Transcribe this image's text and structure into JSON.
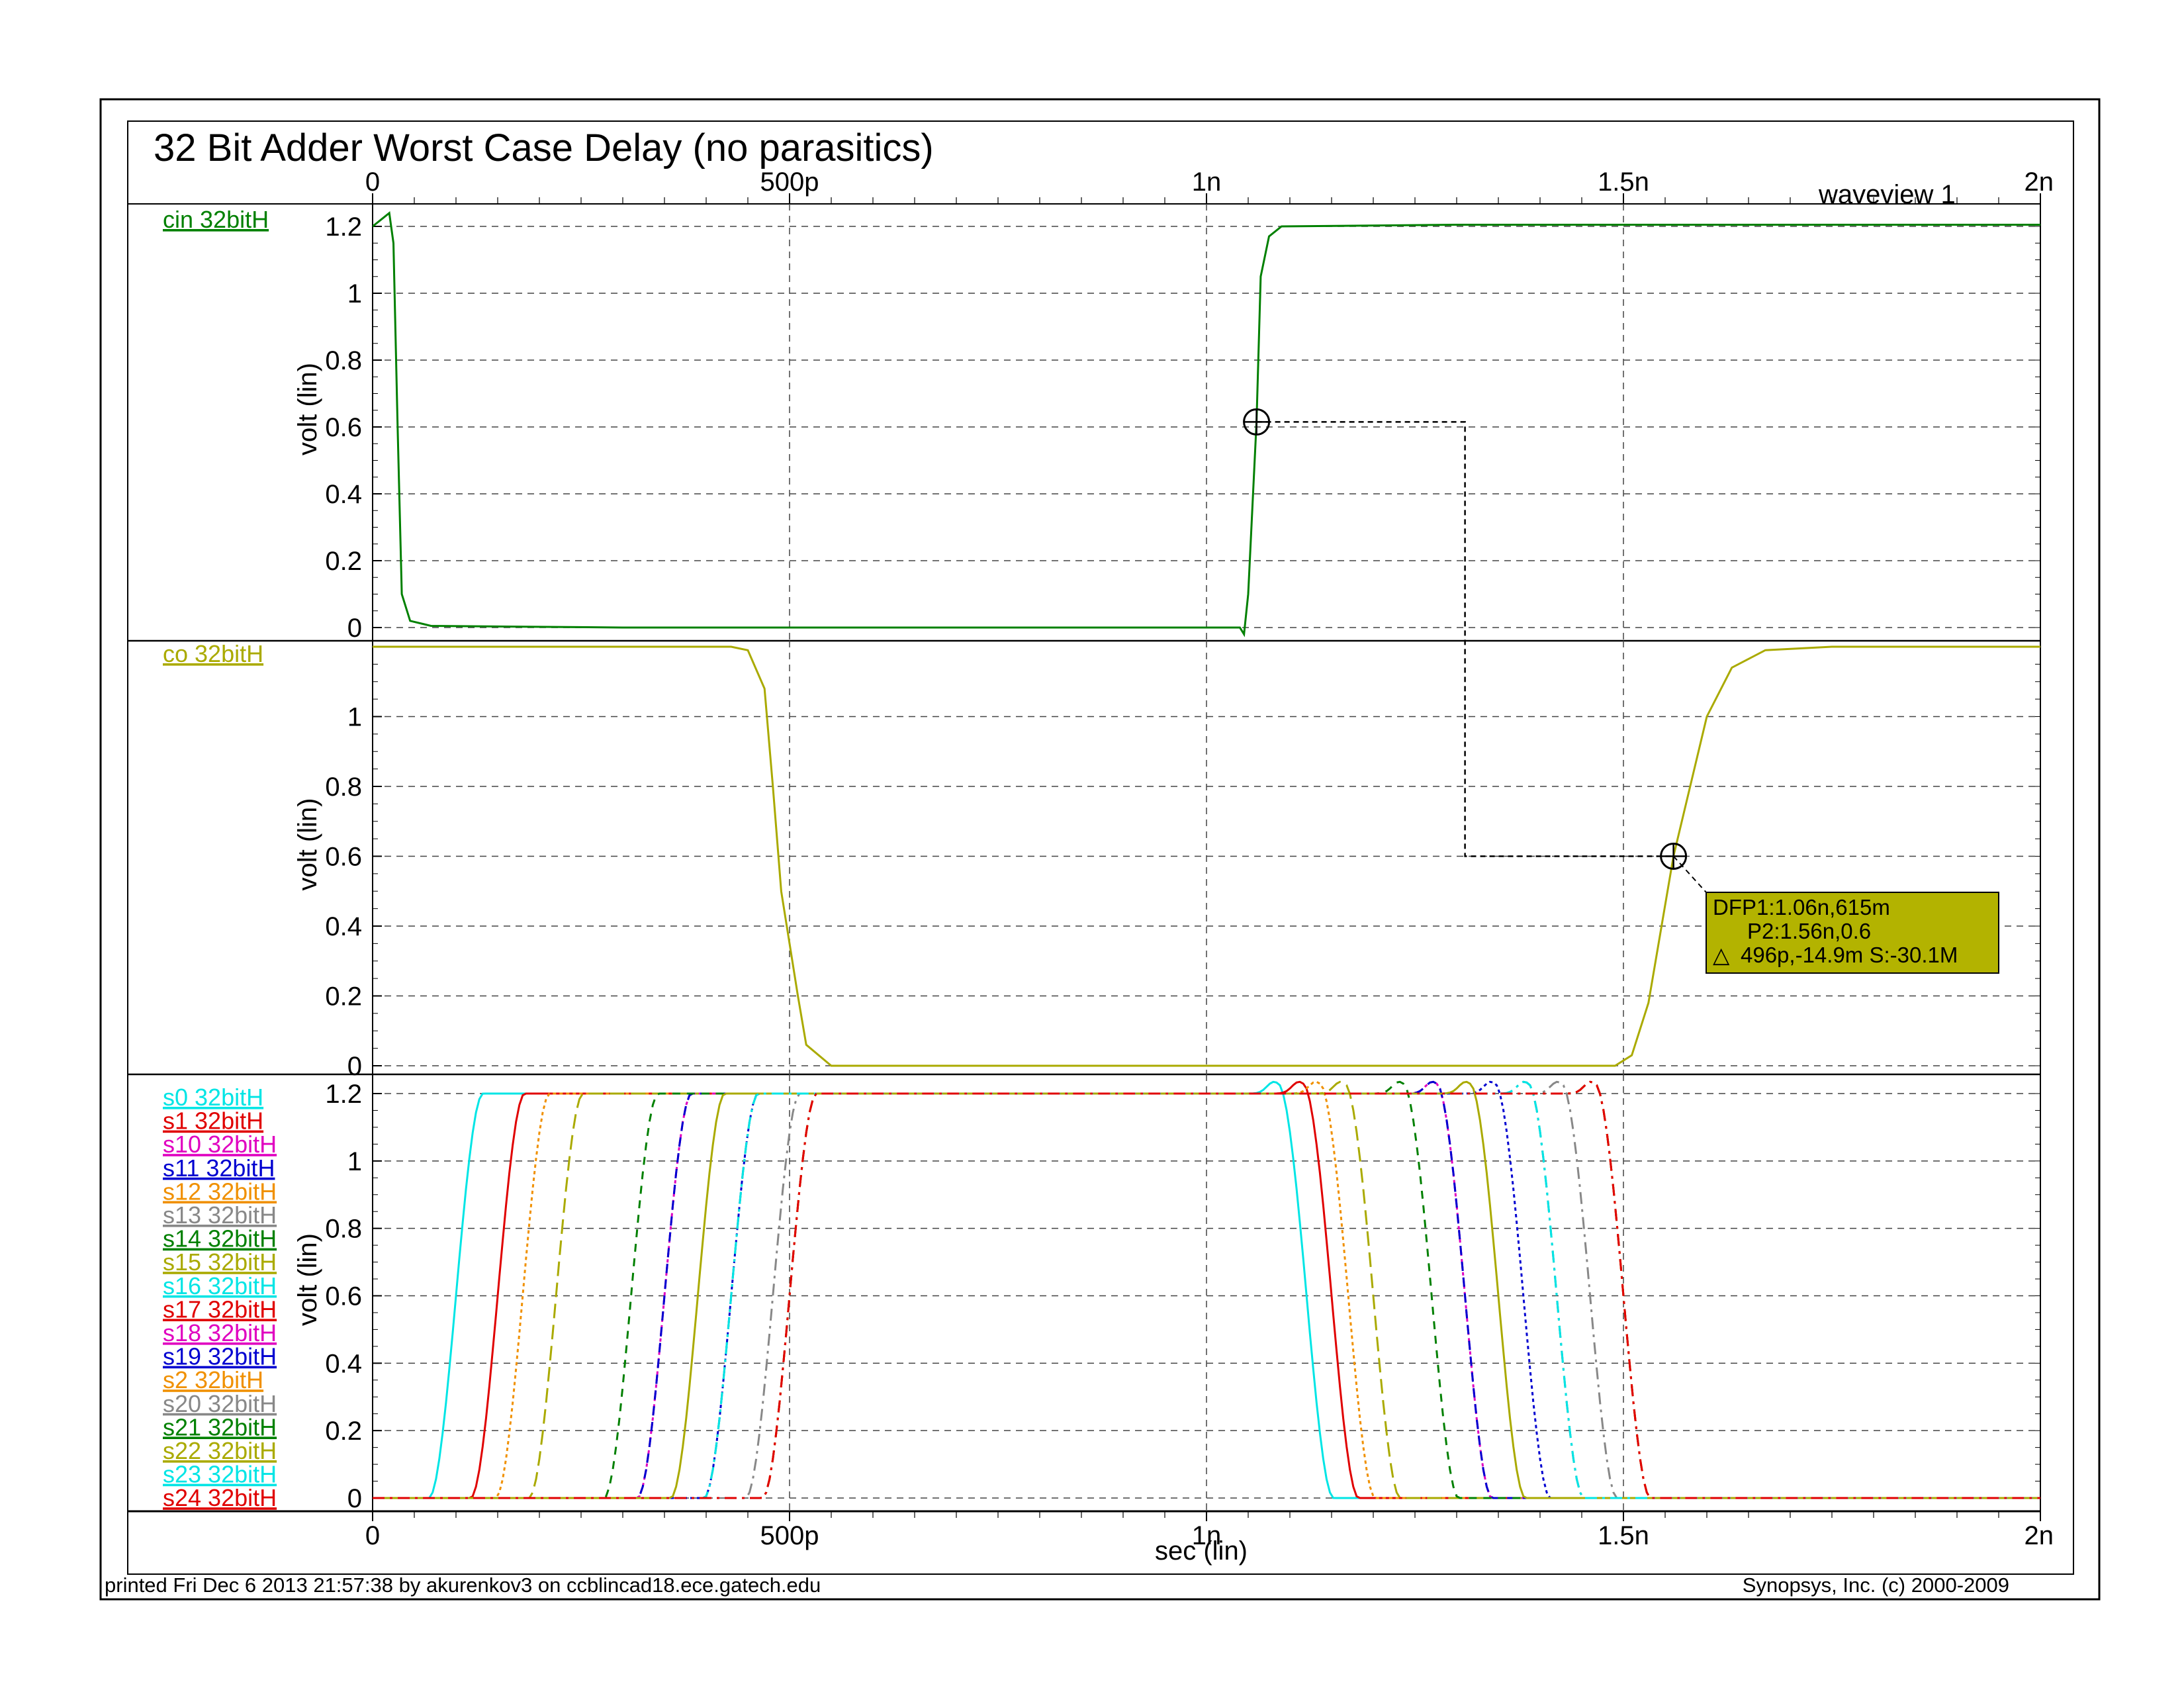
{
  "page": {
    "title": "32 Bit Adder Worst Case Delay (no parasitics)",
    "window_label": "waveview 1",
    "footer_left": "printed Fri Dec  6 2013 21:57:38 by akurenkov3 on ccblincad18.ece.gatech.edu",
    "footer_right": "Synopsys, Inc. (c) 2000-2009",
    "x_label": "sec (lin)",
    "y_label": "volt (lin)"
  },
  "x_axis": {
    "range": [
      0,
      2.0
    ],
    "unit": "ns",
    "tick_values": [
      0,
      0.5,
      1.0,
      1.5,
      2.0
    ],
    "tick_labels_top": [
      "0",
      "500p",
      "1n",
      "1.5n",
      "2n"
    ],
    "tick_labels_bottom": [
      "0",
      "500p",
      "1n",
      "1.5n",
      "2n"
    ]
  },
  "marker": {
    "line1": "DFP1:1.06n,615m",
    "line2": "P2:1.56n,0.6",
    "line3_symbol": "△",
    "line3": "496p,-14.9m S:-30.1M",
    "box_color": "#b3b300",
    "p1": {
      "x": 1.06,
      "y": 0.615
    },
    "p2": {
      "x": 1.56,
      "y": 0.6
    }
  },
  "chart_data": [
    {
      "type": "line",
      "panel": "top",
      "ylim": [
        0,
        1.2
      ],
      "y_ticks": [
        0,
        0.2,
        0.4,
        0.6,
        0.8,
        1,
        1.2
      ],
      "y_tick_labels": [
        "0",
        "0.2",
        "0.4",
        "0.6",
        "0.8",
        "1",
        "1.2"
      ],
      "grid": true,
      "series": [
        {
          "name": "cin 32bitH",
          "color": "#008000",
          "points": [
            [
              0.0,
              1.2
            ],
            [
              0.01,
              1.22
            ],
            [
              0.02,
              1.24
            ],
            [
              0.025,
              1.15
            ],
            [
              0.03,
              0.6
            ],
            [
              0.035,
              0.1
            ],
            [
              0.045,
              0.02
            ],
            [
              0.07,
              0.005
            ],
            [
              0.3,
              0.0
            ],
            [
              0.6,
              0.0
            ],
            [
              1.04,
              0.0
            ],
            [
              1.045,
              -0.02
            ],
            [
              1.05,
              0.1
            ],
            [
              1.06,
              0.615
            ],
            [
              1.065,
              1.05
            ],
            [
              1.075,
              1.17
            ],
            [
              1.09,
              1.2
            ],
            [
              1.3,
              1.205
            ],
            [
              2.0,
              1.205
            ]
          ]
        }
      ]
    },
    {
      "type": "line",
      "panel": "middle",
      "ylim": [
        0,
        1.2
      ],
      "y_ticks": [
        0,
        0.2,
        0.4,
        0.6,
        0.8,
        1
      ],
      "y_tick_labels": [
        "0",
        "0.2",
        "0.4",
        "0.6",
        "0.8",
        "1"
      ],
      "grid": true,
      "series": [
        {
          "name": "co 32bitH",
          "color": "#aaaa00",
          "points": [
            [
              0.0,
              1.2
            ],
            [
              0.43,
              1.2
            ],
            [
              0.45,
              1.19
            ],
            [
              0.47,
              1.08
            ],
            [
              0.48,
              0.8
            ],
            [
              0.49,
              0.5
            ],
            [
              0.5,
              0.35
            ],
            [
              0.51,
              0.2
            ],
            [
              0.52,
              0.06
            ],
            [
              0.55,
              0.0
            ],
            [
              1.49,
              0.0
            ],
            [
              1.51,
              0.03
            ],
            [
              1.53,
              0.18
            ],
            [
              1.56,
              0.6
            ],
            [
              1.6,
              1.0
            ],
            [
              1.63,
              1.14
            ],
            [
              1.67,
              1.19
            ],
            [
              1.75,
              1.2
            ],
            [
              2.0,
              1.2
            ]
          ]
        }
      ]
    },
    {
      "type": "line",
      "panel": "bottom",
      "ylim": [
        0,
        1.2
      ],
      "y_ticks": [
        0,
        0.2,
        0.4,
        0.6,
        0.8,
        1,
        1.2
      ],
      "y_tick_labels": [
        "0",
        "0.2",
        "0.4",
        "0.6",
        "0.8",
        "1",
        "1.2"
      ],
      "grid": true,
      "series": [
        {
          "name": "s0 32bitH",
          "color": "#00e5e5",
          "rise": 0.1,
          "fall": 1.12,
          "dash": ""
        },
        {
          "name": "s1 32bitH",
          "color": "#e00000",
          "rise": 0.15,
          "fall": 1.15,
          "dash": ""
        },
        {
          "name": "s10 32bitH",
          "color": "#e000c0",
          "rise": 0.35,
          "fall": 1.31,
          "dash": "14,10"
        },
        {
          "name": "s11 32bitH",
          "color": "#0000d0",
          "rise": 0.43,
          "fall": 1.38,
          "dash": "5,5"
        },
        {
          "name": "s12 32bitH",
          "color": "#f09000",
          "rise": 0.18,
          "fall": 1.17,
          "dash": "5,5"
        },
        {
          "name": "s13 32bitH",
          "color": "#888888",
          "rise": 0.48,
          "fall": 1.46,
          "dash": "18,8,4,8"
        },
        {
          "name": "s14 32bitH",
          "color": "#008000",
          "rise": 0.5,
          "fall": 1.5,
          "dash": "18,8,4,8"
        },
        {
          "name": "s15 32bitH",
          "color": "#aaaa00",
          "rise": 0.22,
          "fall": 1.2,
          "dash": "22,10"
        },
        {
          "name": "s16 32bitH",
          "color": "#00e5e5",
          "rise": 0.43,
          "fall": 1.42,
          "dash": "18,8,4,8"
        },
        {
          "name": "s17 32bitH",
          "color": "#e00000",
          "rise": 0.5,
          "fall": 1.5,
          "dash": "18,8,4,8"
        },
        {
          "name": "s18 32bitH",
          "color": "#e000c0",
          "rise": 0.35,
          "fall": 1.31,
          "dash": "5,5"
        },
        {
          "name": "s19 32bitH",
          "color": "#0000d0",
          "rise": 0.35,
          "fall": 1.31,
          "dash": "14,10"
        },
        {
          "name": "s2 32bitH",
          "color": "#f09000",
          "rise": 0.5,
          "fall": 1.5,
          "dash": "18,8,4,8"
        },
        {
          "name": "s20 32bitH",
          "color": "#888888",
          "rise": 0.43,
          "fall": 1.42,
          "dash": "18,8,4,8"
        },
        {
          "name": "s21 32bitH",
          "color": "#008000",
          "rise": 0.31,
          "fall": 1.27,
          "dash": "12,10"
        },
        {
          "name": "s22 32bitH",
          "color": "#aaaa00",
          "rise": 0.39,
          "fall": 1.35,
          "dash": ""
        },
        {
          "name": "s23 32bitH",
          "color": "#00e5e5",
          "rise": 0.43,
          "fall": 1.42,
          "dash": "18,8,4,8"
        },
        {
          "name": "s24 32bitH",
          "color": "#e00000",
          "rise": 0.5,
          "fall": 1.5,
          "dash": "18,8,4,8"
        }
      ]
    }
  ]
}
